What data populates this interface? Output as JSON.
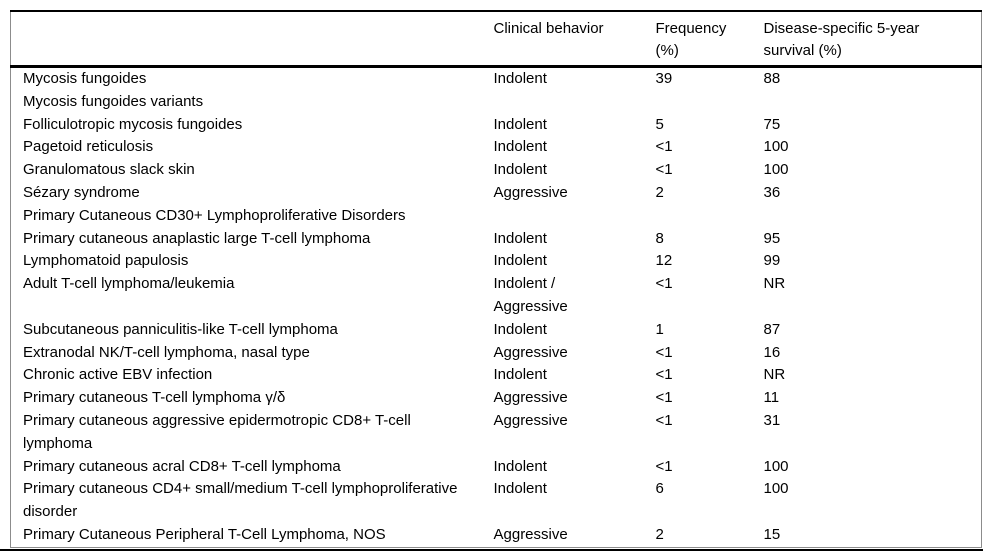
{
  "table": {
    "columns": {
      "name": "",
      "behavior": "Clinical behavior",
      "frequency_line1": "Frequency",
      "frequency_line2": "(%)",
      "survival_line1": "Disease-specific 5-year",
      "survival_line2": "survival (%)"
    },
    "rows": [
      {
        "name": "Mycosis fungoides",
        "behavior": "Indolent",
        "frequency": "39",
        "survival": "88"
      },
      {
        "name": "Mycosis fungoides variants",
        "behavior": "",
        "frequency": "",
        "survival": ""
      },
      {
        "name": "Folliculotropic mycosis fungoides",
        "behavior": "Indolent",
        "frequency": "5",
        "survival": "75"
      },
      {
        "name": "Pagetoid reticulosis",
        "behavior": "Indolent",
        "frequency": "<1",
        "survival": "100"
      },
      {
        "name": "Granulomatous slack skin",
        "behavior": "Indolent",
        "frequency": "<1",
        "survival": "100"
      },
      {
        "name": "Sézary syndrome",
        "behavior": "Aggressive",
        "frequency": "2",
        "survival": "36"
      },
      {
        "name": "Primary Cutaneous CD30+ Lymphoproliferative Disorders",
        "behavior": "",
        "frequency": "",
        "survival": ""
      },
      {
        "name": "Primary cutaneous anaplastic large T-cell lymphoma",
        "behavior": "Indolent",
        "frequency": "8",
        "survival": "95"
      },
      {
        "name": "Lymphomatoid papulosis",
        "behavior": "Indolent",
        "frequency": "12",
        "survival": "99"
      },
      {
        "name": "Adult T-cell lymphoma/leukemia",
        "behavior": "Indolent /\nAggressive",
        "frequency": "<1",
        "survival": "NR"
      },
      {
        "name": "Subcutaneous panniculitis-like T-cell lymphoma",
        "behavior": "Indolent",
        "frequency": "1",
        "survival": "87"
      },
      {
        "name": "Extranodal NK/T-cell lymphoma, nasal type",
        "behavior": "Aggressive",
        "frequency": "<1",
        "survival": "16"
      },
      {
        "name": "Chronic active EBV infection",
        "behavior": "Indolent",
        "frequency": "<1",
        "survival": "NR"
      },
      {
        "name": "Primary cutaneous T-cell lymphoma γ/δ",
        "behavior": "Aggressive",
        "frequency": "<1",
        "survival": "11"
      },
      {
        "name": "Primary cutaneous aggressive epidermotropic CD8+ T-cell lymphoma",
        "behavior": "Aggressive",
        "frequency": "<1",
        "survival": "31"
      },
      {
        "name": "Primary cutaneous acral CD8+ T-cell lymphoma",
        "behavior": "Indolent",
        "frequency": "<1",
        "survival": "100"
      },
      {
        "name": "Primary cutaneous CD4+ small/medium T-cell lymphoproliferative disorder",
        "behavior": "Indolent",
        "frequency": "6",
        "survival": "100"
      },
      {
        "name": "Primary Cutaneous Peripheral T-Cell Lymphoma, NOS",
        "behavior": "Aggressive",
        "frequency": "2",
        "survival": "15"
      }
    ],
    "colors": {
      "rule": "#000000",
      "thin_border": "#8c8c8c",
      "text": "#000000",
      "background": "#ffffff"
    }
  }
}
